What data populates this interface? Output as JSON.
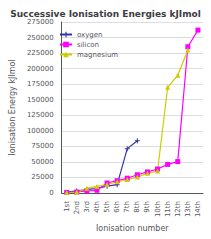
{
  "chart_data": {
    "type": "line",
    "title": "Successive Ionisation Energies kJImol",
    "xlabel": "Ionisation number",
    "ylabel": "Ionisation Energy kJImol",
    "categories": [
      "1st",
      "2nd",
      "3rd",
      "4th",
      "5th",
      "6th",
      "7th",
      "8th",
      "9th",
      "10th",
      "11th",
      "12th",
      "13th",
      "14th"
    ],
    "series": [
      {
        "name": "oxygen",
        "color": "#3333aa",
        "marker": "plus",
        "values": [
          1314,
          3388,
          5301,
          7469,
          10990,
          13327,
          71330,
          84078,
          null,
          null,
          null,
          null,
          null,
          null
        ]
      },
      {
        "name": "silicon",
        "color": "#ff00ff",
        "marker": "square",
        "values": [
          786,
          1577,
          3232,
          4356,
          16091,
          19785,
          23787,
          29287,
          33865,
          38600,
          45962,
          50502,
          235196,
          262000
        ]
      },
      {
        "name": "magnesium",
        "color": "#cccc00",
        "marker": "triangle",
        "values": [
          738,
          1451,
          7733,
          10541,
          13629,
          17995,
          21704,
          25657,
          31642,
          35464,
          169988,
          189368,
          230000,
          null
        ]
      }
    ],
    "ylim": [
      0,
      275000
    ],
    "yticks": [
      0,
      25000,
      50000,
      75000,
      100000,
      125000,
      150000,
      175000,
      200000,
      225000,
      250000,
      275000
    ],
    "grid": true,
    "legend": "upper left"
  }
}
